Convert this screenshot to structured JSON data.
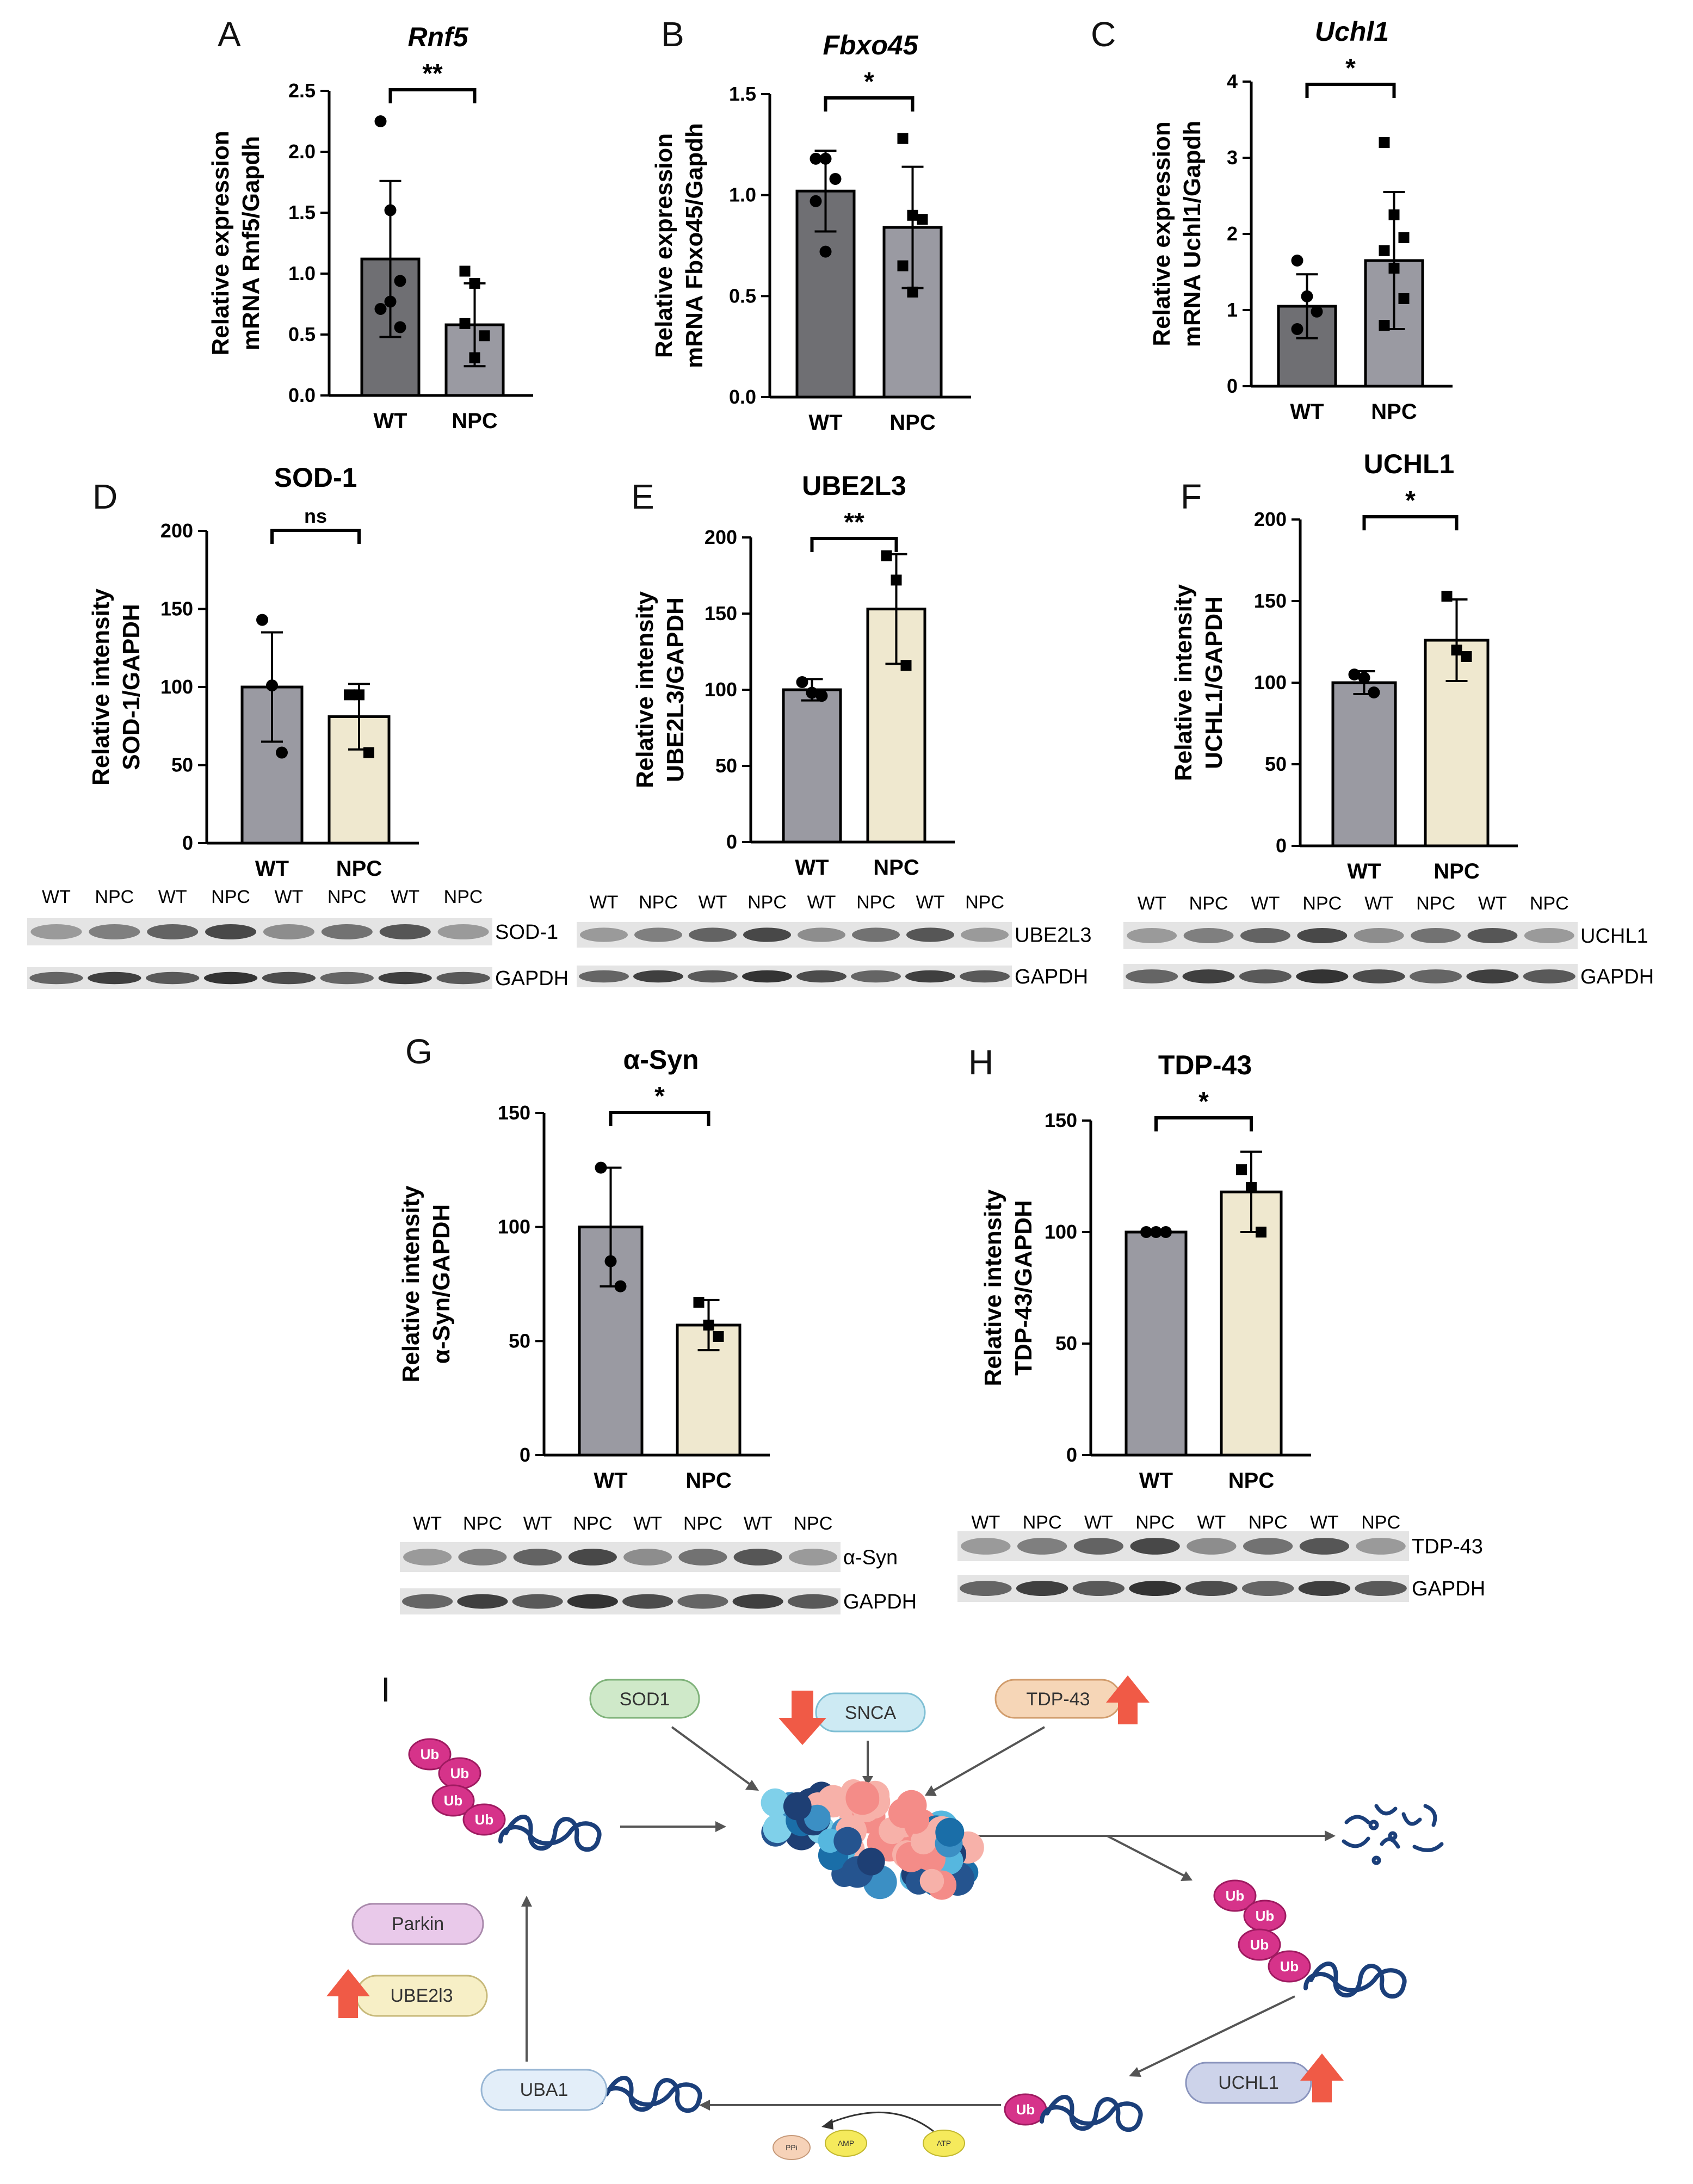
{
  "colors": {
    "gray_bar": "#9a9aa2",
    "dark_gray_bar": "#6f6f73",
    "beige_bar": "#efe8cf",
    "text": "#000000",
    "arrow_red": "#f05a46"
  },
  "chart_data": [
    {
      "id": "A",
      "panel_label": "A",
      "type": "bar",
      "title": "Rnf5",
      "title_italic": true,
      "ylabel_line1": "Relative expression",
      "ylabel_line2": "mRNA Rnf5/Gapdh",
      "categories": [
        "WT",
        "NPC"
      ],
      "values": [
        1.12,
        0.58
      ],
      "errors": [
        0.64,
        0.34
      ],
      "points": [
        [
          2.25,
          1.52,
          0.94,
          0.71,
          0.77,
          0.56
        ],
        [
          1.02,
          0.92,
          0.49,
          0.59,
          0.31
        ]
      ],
      "ylim": [
        0,
        2.5
      ],
      "ticks": [
        0.0,
        0.5,
        1.0,
        1.5,
        2.0,
        2.5
      ],
      "tick_labels": [
        "0.0",
        "0.5",
        "1.0",
        "1.5",
        "2.0",
        "2.5"
      ],
      "significance": "**"
    },
    {
      "id": "B",
      "panel_label": "B",
      "type": "bar",
      "title": "Fbxo45",
      "title_italic": true,
      "ylabel_line1": "Relative expression",
      "ylabel_line2": "mRNA Fbxo45/Gapdh",
      "categories": [
        "WT",
        "NPC"
      ],
      "values": [
        1.02,
        0.84
      ],
      "errors": [
        0.2,
        0.3
      ],
      "points": [
        [
          1.18,
          1.18,
          1.08,
          0.97,
          0.72
        ],
        [
          1.28,
          0.9,
          0.88,
          0.65,
          0.52
        ]
      ],
      "ylim": [
        0,
        1.5
      ],
      "ticks": [
        0.0,
        0.5,
        1.0,
        1.5
      ],
      "tick_labels": [
        "0.0",
        "0.5",
        "1.0",
        "1.5"
      ],
      "significance": "*"
    },
    {
      "id": "C",
      "panel_label": "C",
      "type": "bar",
      "title": "Uchl1",
      "title_italic": true,
      "ylabel_line1": "Relative expression",
      "ylabel_line2": "mRNA Uchl1/Gapdh",
      "categories": [
        "WT",
        "NPC"
      ],
      "values": [
        1.05,
        1.65
      ],
      "errors": [
        0.42,
        0.9
      ],
      "points": [
        [
          1.65,
          1.18,
          0.98,
          0.75
        ],
        [
          3.2,
          2.25,
          1.95,
          1.78,
          1.55,
          1.15,
          0.8
        ]
      ],
      "ylim": [
        0,
        4
      ],
      "ticks": [
        0,
        1,
        2,
        3,
        4
      ],
      "tick_labels": [
        "0",
        "1",
        "2",
        "3",
        "4"
      ],
      "significance": "*"
    },
    {
      "id": "D",
      "panel_label": "D",
      "type": "bar",
      "title": "SOD-1",
      "title_italic": false,
      "ylabel_line1": "Relative intensity",
      "ylabel_line2": "SOD-1/GAPDH",
      "categories": [
        "WT",
        "NPC"
      ],
      "values": [
        100,
        81
      ],
      "errors": [
        35,
        21
      ],
      "points": [
        [
          143,
          101,
          58
        ],
        [
          95,
          95,
          58
        ]
      ],
      "ylim": [
        0,
        200
      ],
      "ticks": [
        0,
        50,
        100,
        150,
        200
      ],
      "tick_labels": [
        "0",
        "50",
        "100",
        "150",
        "200"
      ],
      "significance": "ns"
    },
    {
      "id": "E",
      "panel_label": "E",
      "type": "bar",
      "title": "UBE2L3",
      "title_italic": false,
      "ylabel_line1": "Relative intensity",
      "ylabel_line2": "UBE2L3/GAPDH",
      "categories": [
        "WT",
        "NPC"
      ],
      "values": [
        100,
        153
      ],
      "errors": [
        7,
        36
      ],
      "points": [
        [
          105,
          98,
          96
        ],
        [
          188,
          172,
          116
        ]
      ],
      "ylim": [
        0,
        200
      ],
      "ticks": [
        0,
        50,
        100,
        150,
        200
      ],
      "tick_labels": [
        "0",
        "50",
        "100",
        "150",
        "200"
      ],
      "significance": "**"
    },
    {
      "id": "F",
      "panel_label": "F",
      "type": "bar",
      "title": "UCHL1",
      "title_italic": false,
      "ylabel_line1": "Relative intensity",
      "ylabel_line2": "UCHL1/GAPDH",
      "categories": [
        "WT",
        "NPC"
      ],
      "values": [
        100,
        126
      ],
      "errors": [
        7,
        25
      ],
      "points": [
        [
          105,
          103,
          94
        ],
        [
          153,
          120,
          116
        ]
      ],
      "ylim": [
        0,
        200
      ],
      "ticks": [
        0,
        50,
        100,
        150,
        200
      ],
      "tick_labels": [
        "0",
        "50",
        "100",
        "150",
        "200"
      ],
      "significance": "*"
    },
    {
      "id": "G",
      "panel_label": "G",
      "type": "bar",
      "title": "α-Syn",
      "title_italic": false,
      "ylabel_line1": "Relative intensity",
      "ylabel_line2": "α-Syn/GAPDH",
      "categories": [
        "WT",
        "NPC"
      ],
      "values": [
        100,
        57
      ],
      "errors": [
        26,
        11
      ],
      "points": [
        [
          126,
          85,
          74
        ],
        [
          67,
          57,
          52
        ]
      ],
      "ylim": [
        0,
        150
      ],
      "ticks": [
        0,
        50,
        100,
        150
      ],
      "tick_labels": [
        "0",
        "50",
        "100",
        "150"
      ],
      "significance": "*"
    },
    {
      "id": "H",
      "panel_label": "H",
      "type": "bar",
      "title": "TDP-43",
      "title_italic": false,
      "ylabel_line1": "Relative intensity",
      "ylabel_line2": "TDP-43/GAPDH",
      "categories": [
        "WT",
        "NPC"
      ],
      "values": [
        100,
        118
      ],
      "errors": [
        0.5,
        18
      ],
      "points": [
        [
          100,
          100,
          100
        ],
        [
          128,
          120,
          100
        ]
      ],
      "ylim": [
        0,
        150
      ],
      "ticks": [
        0,
        50,
        100,
        150
      ],
      "tick_labels": [
        "0",
        "50",
        "100",
        "150"
      ],
      "significance": "*"
    }
  ],
  "blots": [
    {
      "id": "D",
      "lanes": [
        "WT",
        "NPC",
        "WT",
        "NPC",
        "WT",
        "NPC",
        "WT",
        "NPC"
      ],
      "target": "SOD-1",
      "loading": "GAPDH"
    },
    {
      "id": "E",
      "lanes": [
        "WT",
        "NPC",
        "WT",
        "NPC",
        "WT",
        "NPC",
        "WT",
        "NPC"
      ],
      "target": "UBE2L3",
      "loading": "GAPDH"
    },
    {
      "id": "F",
      "lanes": [
        "WT",
        "NPC",
        "WT",
        "NPC",
        "WT",
        "NPC",
        "WT",
        "NPC"
      ],
      "target": "UCHL1",
      "loading": "GAPDH"
    },
    {
      "id": "G",
      "lanes": [
        "WT",
        "NPC",
        "WT",
        "NPC",
        "WT",
        "NPC",
        "WT",
        "NPC"
      ],
      "target": "α-Syn",
      "loading": "GAPDH"
    },
    {
      "id": "H",
      "lanes": [
        "WT",
        "NPC",
        "WT",
        "NPC",
        "WT",
        "NPC",
        "WT",
        "NPC"
      ],
      "target": "TDP-43",
      "loading": "GAPDH"
    }
  ],
  "diagram": {
    "panel_label": "I",
    "sod1": "SOD1",
    "snca": "SNCA",
    "tdp43": "TDP-43",
    "parkin": "Parkin",
    "ube2l3": "UBE2l3",
    "uba1": "UBA1",
    "uchl1": "UCHL1",
    "ub": "Ub",
    "ppi": "PPi",
    "amp": "AMP",
    "atp": "ATP"
  }
}
